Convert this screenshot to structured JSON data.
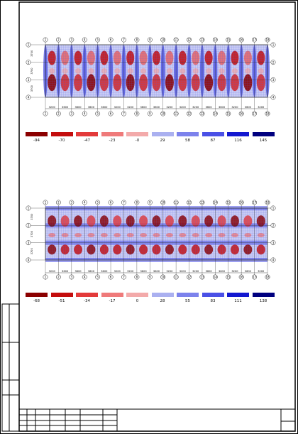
{
  "drawing_sheet": {
    "title_block": {
      "text": ""
    }
  },
  "plots": [
    {
      "grid_axes": [
        "1",
        "2",
        "3",
        "4",
        "5",
        "6",
        "7",
        "8",
        "9",
        "10",
        "11",
        "12",
        "13",
        "14",
        "15",
        "16",
        "17",
        "18"
      ],
      "row_axes": [
        "1",
        "2",
        "3",
        "4"
      ],
      "spans": [
        "3200",
        "3600",
        "3600",
        "3600",
        "3600",
        "3200",
        "3200",
        "3600",
        "3600",
        "3200",
        "3200",
        "3200",
        "3600",
        "3600",
        "3200",
        "3600",
        "3200"
      ],
      "row_spans": [
        "3700",
        "3700",
        "3700"
      ],
      "legend": [
        {
          "value": "-94",
          "color": "#8b0000"
        },
        {
          "value": "-70",
          "color": "#c40d0d"
        },
        {
          "value": "-47",
          "color": "#e33a3a"
        },
        {
          "value": "-23",
          "color": "#ef7a7a"
        },
        {
          "value": "-0",
          "color": "#f3aaaa"
        },
        {
          "value": "29",
          "color": "#aab0f0"
        },
        {
          "value": "58",
          "color": "#7c82ec"
        },
        {
          "value": "87",
          "color": "#4a50e6"
        },
        {
          "value": "116",
          "color": "#1318d0"
        },
        {
          "value": "145",
          "color": "#00007f"
        }
      ]
    },
    {
      "grid_axes": [
        "1",
        "2",
        "3",
        "4",
        "5",
        "6",
        "7",
        "8",
        "9",
        "10",
        "11",
        "12",
        "13",
        "14",
        "15",
        "16",
        "17",
        "18"
      ],
      "row_axes": [
        "1",
        "2",
        "3",
        "4"
      ],
      "spans": [
        "3200",
        "3600",
        "3600",
        "3600",
        "3600",
        "3200",
        "3200",
        "3600",
        "3600",
        "3200",
        "3200",
        "3200",
        "3600",
        "3600",
        "3200",
        "3600",
        "3200"
      ],
      "row_spans": [
        "3700",
        "3700",
        "3700"
      ],
      "legend": [
        {
          "value": "-68",
          "color": "#8b0000"
        },
        {
          "value": "-51",
          "color": "#c40d0d"
        },
        {
          "value": "-34",
          "color": "#e33a3a"
        },
        {
          "value": "-17",
          "color": "#ef7a7a"
        },
        {
          "value": "0",
          "color": "#f3aaaa"
        },
        {
          "value": "28",
          "color": "#aab0f0"
        },
        {
          "value": "55",
          "color": "#7c82ec"
        },
        {
          "value": "83",
          "color": "#4a50e6"
        },
        {
          "value": "111",
          "color": "#1318d0"
        },
        {
          "value": "138",
          "color": "#00007f"
        }
      ]
    }
  ]
}
